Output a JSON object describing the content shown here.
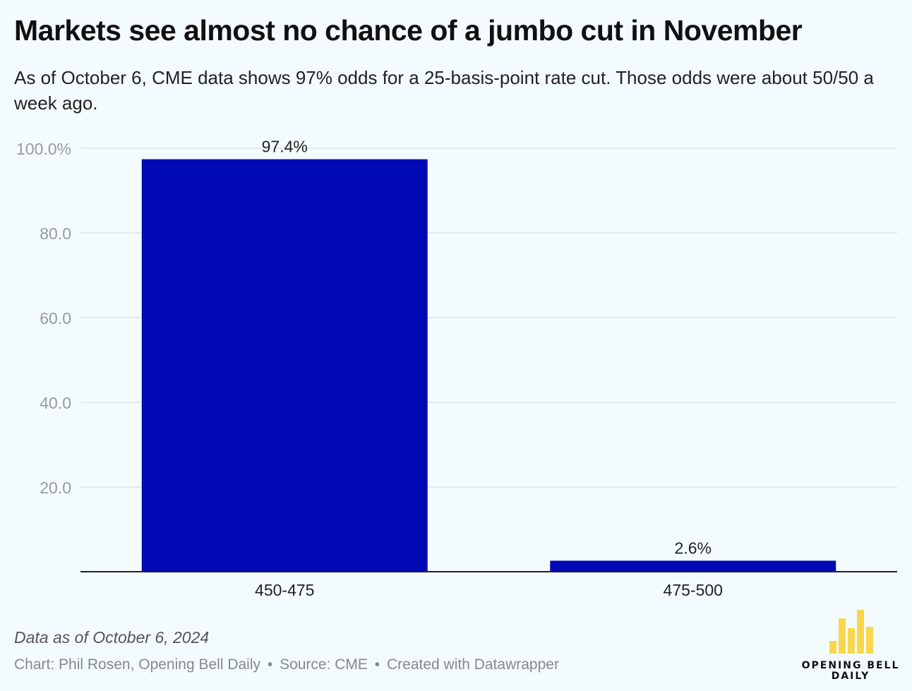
{
  "header": {
    "title": "Markets see almost no chance of a jumbo cut in November",
    "subtitle": "As of October 6, CME data shows 97% odds for a 25-basis-point rate cut. Those odds were about 50/50 a week ago."
  },
  "chart_data": {
    "type": "bar",
    "categories": [
      "450-475",
      "475-500"
    ],
    "values": [
      97.4,
      2.6
    ],
    "value_labels": [
      "97.4%",
      "2.6%"
    ],
    "ylim": [
      0,
      100
    ],
    "yticks": [
      20,
      40,
      60,
      80,
      100
    ],
    "ytick_labels": [
      "20.0",
      "40.0",
      "60.0",
      "80.0",
      "100.0%"
    ],
    "grid": true,
    "bar_color": "#0009b3"
  },
  "notes": "Data as of October 6, 2024",
  "footer": {
    "chart_credit": "Chart: Phil Rosen, Opening Bell Daily",
    "separator": "•",
    "source": "Source: CME",
    "tool": "Created with Datawrapper"
  },
  "logo": {
    "line1": "OPENING BELL",
    "line2": "DAILY",
    "color": "#f9d74c"
  }
}
